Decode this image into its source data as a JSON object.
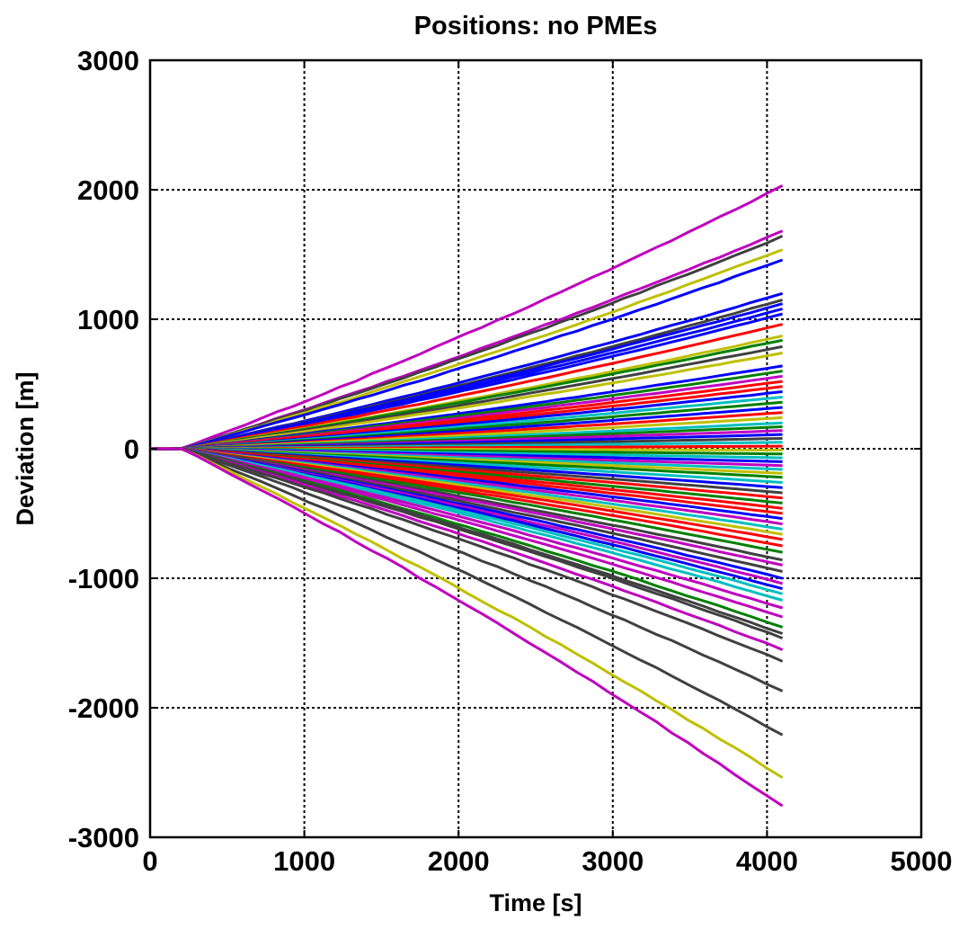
{
  "chart_data": {
    "type": "line",
    "title": "Positions: no PMEs",
    "xlabel": "Time [s]",
    "ylabel": "Deviation [m]",
    "xlim": [
      0,
      5000
    ],
    "ylim": [
      -3000,
      3000
    ],
    "xticks": [
      0,
      1000,
      2000,
      3000,
      4000,
      5000
    ],
    "yticks": [
      -3000,
      -2000,
      -1000,
      0,
      1000,
      2000,
      3000
    ],
    "xtick_labels": [
      "0",
      "1000",
      "2000",
      "3000",
      "4000",
      "5000"
    ],
    "ytick_labels": [
      "-3000",
      "-2000",
      "-1000",
      "0",
      "1000",
      "2000",
      "3000"
    ],
    "grid": true,
    "legend": "none",
    "x_start": 0,
    "x_end": 4100,
    "series_note": "hundreds of trajectories diverging roughly linearly from zero; listed endpoint deviations at t=4100 s",
    "series": [
      {
        "color": "#bf00bf",
        "values": [
          0,
          2030
        ]
      },
      {
        "color": "#bf00bf",
        "values": [
          0,
          1680
        ]
      },
      {
        "color": "#404040",
        "values": [
          0,
          1640
        ]
      },
      {
        "color": "#bfbf00",
        "values": [
          0,
          1540
        ]
      },
      {
        "color": "#0000ff",
        "values": [
          0,
          1460
        ]
      },
      {
        "color": "#0000ff",
        "values": [
          0,
          1200
        ]
      },
      {
        "color": "#404040",
        "values": [
          0,
          1150
        ]
      },
      {
        "color": "#0000ff",
        "values": [
          0,
          1120
        ]
      },
      {
        "color": "#0000ff",
        "values": [
          0,
          1080
        ]
      },
      {
        "color": "#0000ff",
        "values": [
          0,
          1040
        ]
      },
      {
        "color": "#ff0000",
        "values": [
          0,
          960
        ]
      },
      {
        "color": "#bfbf00",
        "values": [
          0,
          870
        ]
      },
      {
        "color": "#008000",
        "values": [
          0,
          840
        ]
      },
      {
        "color": "#404040",
        "values": [
          0,
          790
        ]
      },
      {
        "color": "#bfbf00",
        "values": [
          0,
          740
        ]
      },
      {
        "color": "#0000ff",
        "values": [
          0,
          640
        ]
      },
      {
        "color": "#008000",
        "values": [
          0,
          600
        ]
      },
      {
        "color": "#bf00bf",
        "values": [
          0,
          560
        ]
      },
      {
        "color": "#ff0000",
        "values": [
          0,
          520
        ]
      },
      {
        "color": "#ff0000",
        "values": [
          0,
          480
        ]
      },
      {
        "color": "#0000ff",
        "values": [
          0,
          440
        ]
      },
      {
        "color": "#00bfbf",
        "values": [
          0,
          400
        ]
      },
      {
        "color": "#008000",
        "values": [
          0,
          360
        ]
      },
      {
        "color": "#0000ff",
        "values": [
          0,
          320
        ]
      },
      {
        "color": "#ff0000",
        "values": [
          0,
          280
        ]
      },
      {
        "color": "#bfbf00",
        "values": [
          0,
          240
        ]
      },
      {
        "color": "#00bfbf",
        "values": [
          0,
          200
        ]
      },
      {
        "color": "#008000",
        "values": [
          0,
          170
        ]
      },
      {
        "color": "#bf00bf",
        "values": [
          0,
          140
        ]
      },
      {
        "color": "#0000ff",
        "values": [
          0,
          110
        ]
      },
      {
        "color": "#404040",
        "values": [
          0,
          80
        ]
      },
      {
        "color": "#00bfbf",
        "values": [
          0,
          50
        ]
      },
      {
        "color": "#ff0000",
        "values": [
          0,
          20
        ]
      },
      {
        "color": "#bfbf00",
        "values": [
          0,
          -10
        ]
      },
      {
        "color": "#008000",
        "values": [
          0,
          -40
        ]
      },
      {
        "color": "#00bfbf",
        "values": [
          0,
          -70
        ]
      },
      {
        "color": "#0000ff",
        "values": [
          0,
          -100
        ]
      },
      {
        "color": "#bf00bf",
        "values": [
          0,
          -130
        ]
      },
      {
        "color": "#00bfbf",
        "values": [
          0,
          -160
        ]
      },
      {
        "color": "#bfbf00",
        "values": [
          0,
          -190
        ]
      },
      {
        "color": "#008000",
        "values": [
          0,
          -220
        ]
      },
      {
        "color": "#00bfbf",
        "values": [
          0,
          -260
        ]
      },
      {
        "color": "#0000ff",
        "values": [
          0,
          -300
        ]
      },
      {
        "color": "#404040",
        "values": [
          0,
          -340
        ]
      },
      {
        "color": "#ff0000",
        "values": [
          0,
          -380
        ]
      },
      {
        "color": "#008000",
        "values": [
          0,
          -420
        ]
      },
      {
        "color": "#ff0000",
        "values": [
          0,
          -460
        ]
      },
      {
        "color": "#ff0000",
        "values": [
          0,
          -500
        ]
      },
      {
        "color": "#0000ff",
        "values": [
          0,
          -540
        ]
      },
      {
        "color": "#bf00bf",
        "values": [
          0,
          -580
        ]
      },
      {
        "color": "#00bfbf",
        "values": [
          0,
          -620
        ]
      },
      {
        "color": "#bfbf00",
        "values": [
          0,
          -660
        ]
      },
      {
        "color": "#ff0000",
        "values": [
          0,
          -700
        ]
      },
      {
        "color": "#ff0000",
        "values": [
          0,
          -750
        ]
      },
      {
        "color": "#008000",
        "values": [
          0,
          -800
        ]
      },
      {
        "color": "#404040",
        "values": [
          0,
          -860
        ]
      },
      {
        "color": "#bf00bf",
        "values": [
          0,
          -900
        ]
      },
      {
        "color": "#404040",
        "values": [
          0,
          -950
        ]
      },
      {
        "color": "#0000ff",
        "values": [
          0,
          -1000
        ]
      },
      {
        "color": "#bf00bf",
        "values": [
          0,
          -1040
        ]
      },
      {
        "color": "#0000ff",
        "values": [
          0,
          -1080
        ]
      },
      {
        "color": "#00bfbf",
        "values": [
          0,
          -1120
        ]
      },
      {
        "color": "#00bfbf",
        "values": [
          0,
          -1170
        ]
      },
      {
        "color": "#bf00bf",
        "values": [
          0,
          -1230
        ]
      },
      {
        "color": "#bf00bf",
        "values": [
          0,
          -1300
        ]
      },
      {
        "color": "#008000",
        "values": [
          0,
          -1380
        ]
      },
      {
        "color": "#404040",
        "values": [
          0,
          -1430
        ]
      },
      {
        "color": "#404040",
        "values": [
          0,
          -1460
        ]
      },
      {
        "color": "#bf00bf",
        "values": [
          0,
          -1550
        ]
      },
      {
        "color": "#404040",
        "values": [
          0,
          -1640
        ]
      },
      {
        "color": "#404040",
        "values": [
          0,
          -1870
        ]
      },
      {
        "color": "#404040",
        "values": [
          0,
          -2210
        ]
      },
      {
        "color": "#bfbf00",
        "values": [
          0,
          -2540
        ]
      },
      {
        "color": "#bf00bf",
        "values": [
          0,
          -2760
        ]
      }
    ]
  }
}
